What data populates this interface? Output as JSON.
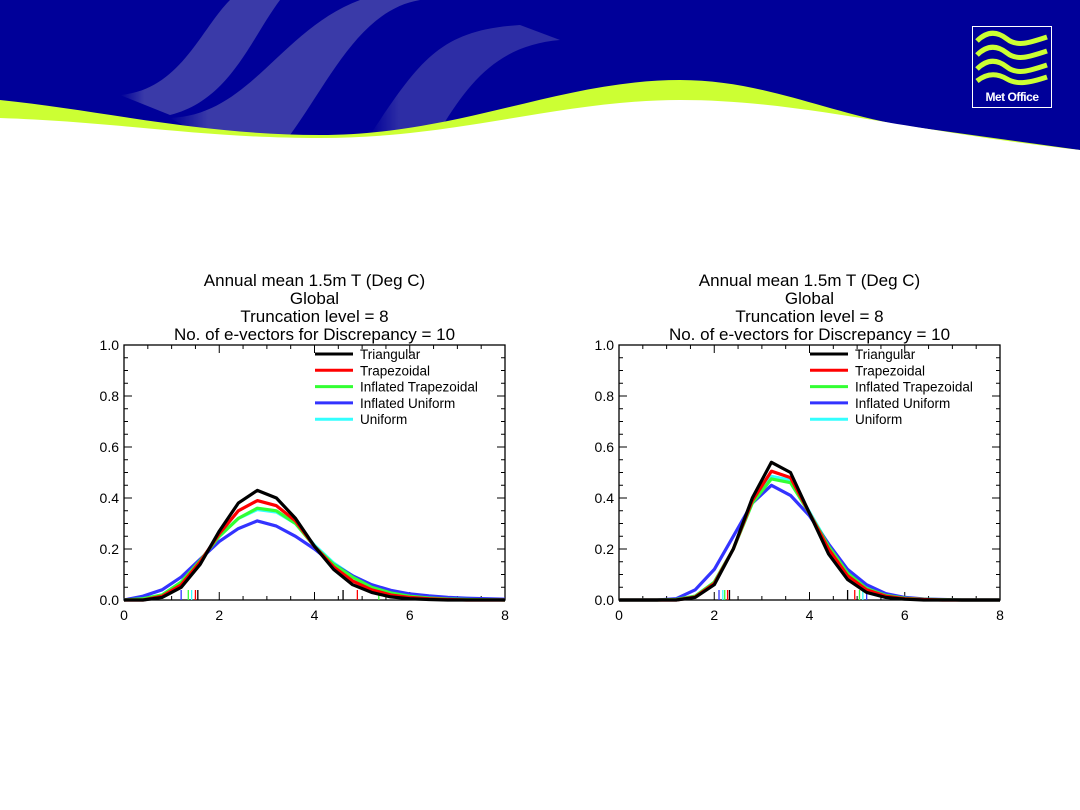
{
  "logo": {
    "text": "Met Office"
  },
  "colors": {
    "navy": "#000099",
    "lime": "#ccff33"
  },
  "chart_data": [
    {
      "type": "line",
      "title": [
        "Annual mean 1.5m T (Deg C)",
        "Global",
        "Truncation level = 8",
        "No. of e-vectors for Discrepancy = 10"
      ],
      "xlabel": "",
      "ylabel": "",
      "xlim": [
        0,
        8
      ],
      "ylim": [
        0,
        1.0
      ],
      "xticks": [
        "0",
        "2",
        "4",
        "6",
        "8"
      ],
      "yticks": [
        "0.0",
        "0.2",
        "0.4",
        "0.6",
        "0.8",
        "1.0"
      ],
      "legend_position": "top-right",
      "x": [
        0,
        0.4,
        0.8,
        1.2,
        1.6,
        2.0,
        2.4,
        2.8,
        3.2,
        3.6,
        4.0,
        4.4,
        4.8,
        5.2,
        5.6,
        6.0,
        6.4,
        6.8,
        7.2,
        7.6,
        8.0
      ],
      "series": [
        {
          "name": "Triangular",
          "color": "#000000",
          "values": [
            0,
            0,
            0.01,
            0.05,
            0.14,
            0.27,
            0.38,
            0.43,
            0.4,
            0.32,
            0.21,
            0.12,
            0.06,
            0.03,
            0.012,
            0.005,
            0.002,
            0,
            0,
            0,
            0
          ],
          "rug": [
            1.55,
            4.6
          ]
        },
        {
          "name": "Trapezoidal",
          "color": "#ff0000",
          "values": [
            0,
            0,
            0.015,
            0.06,
            0.15,
            0.26,
            0.35,
            0.39,
            0.37,
            0.31,
            0.21,
            0.13,
            0.075,
            0.04,
            0.02,
            0.01,
            0.005,
            0.002,
            0,
            0,
            0
          ],
          "rug": [
            1.5,
            4.9
          ]
        },
        {
          "name": "Inflated Trapezoidal",
          "color": "#33ff33",
          "values": [
            0,
            0.005,
            0.02,
            0.07,
            0.155,
            0.25,
            0.32,
            0.36,
            0.35,
            0.3,
            0.21,
            0.14,
            0.09,
            0.05,
            0.028,
            0.015,
            0.008,
            0.004,
            0.002,
            0.001,
            0
          ],
          "rug": [
            1.35,
            5.35
          ]
        },
        {
          "name": "Inflated Uniform",
          "color": "#3333ff",
          "values": [
            0,
            0.015,
            0.04,
            0.09,
            0.16,
            0.23,
            0.28,
            0.31,
            0.29,
            0.25,
            0.2,
            0.14,
            0.095,
            0.06,
            0.038,
            0.024,
            0.016,
            0.01,
            0.007,
            0.005,
            0.003
          ],
          "rug": [
            1.2
          ]
        },
        {
          "name": "Uniform",
          "color": "#33ffff",
          "values": [
            0,
            0.005,
            0.02,
            0.07,
            0.155,
            0.25,
            0.32,
            0.355,
            0.345,
            0.3,
            0.215,
            0.145,
            0.095,
            0.055,
            0.03,
            0.017,
            0.009,
            0.005,
            0.003,
            0.002,
            0.001
          ],
          "rug": [
            1.42
          ]
        }
      ]
    },
    {
      "type": "line",
      "title": [
        "Annual mean 1.5m T (Deg C)",
        "Global",
        "Truncation level = 8",
        "No. of e-vectors for Discrepancy = 10"
      ],
      "xlabel": "",
      "ylabel": "",
      "xlim": [
        0,
        8
      ],
      "ylim": [
        0,
        1.0
      ],
      "xticks": [
        "0",
        "2",
        "4",
        "6",
        "8"
      ],
      "yticks": [
        "0.0",
        "0.2",
        "0.4",
        "0.6",
        "0.8",
        "1.0"
      ],
      "legend_position": "top-right",
      "x": [
        0,
        0.4,
        0.8,
        1.2,
        1.6,
        2.0,
        2.4,
        2.8,
        3.2,
        3.6,
        4.0,
        4.4,
        4.8,
        5.2,
        5.6,
        6.0,
        6.4,
        6.8,
        7.2,
        7.6,
        8.0
      ],
      "series": [
        {
          "name": "Triangular",
          "color": "#000000",
          "values": [
            0,
            0,
            0,
            0,
            0.01,
            0.06,
            0.2,
            0.4,
            0.54,
            0.5,
            0.34,
            0.18,
            0.08,
            0.03,
            0.01,
            0.003,
            0,
            0,
            0,
            0,
            0
          ],
          "rug": [
            2.32,
            4.8
          ]
        },
        {
          "name": "Trapezoidal",
          "color": "#ff0000",
          "values": [
            0,
            0,
            0,
            0,
            0.012,
            0.065,
            0.2,
            0.39,
            0.505,
            0.48,
            0.34,
            0.2,
            0.095,
            0.04,
            0.015,
            0.005,
            0.002,
            0,
            0,
            0,
            0
          ],
          "rug": [
            2.28,
            4.95
          ]
        },
        {
          "name": "Inflated Trapezoidal",
          "color": "#33ff33",
          "values": [
            0,
            0,
            0,
            0.002,
            0.015,
            0.07,
            0.2,
            0.38,
            0.475,
            0.46,
            0.34,
            0.21,
            0.105,
            0.045,
            0.018,
            0.007,
            0.003,
            0.001,
            0,
            0,
            0
          ],
          "rug": [
            2.22,
            5.05
          ]
        },
        {
          "name": "Inflated Uniform",
          "color": "#3333ff",
          "values": [
            0,
            0,
            0,
            0.005,
            0.04,
            0.12,
            0.25,
            0.38,
            0.45,
            0.41,
            0.33,
            0.22,
            0.12,
            0.06,
            0.025,
            0.01,
            0.004,
            0.002,
            0,
            0,
            0
          ],
          "rug": [
            2.1,
            5.2
          ]
        },
        {
          "name": "Uniform",
          "color": "#33ffff",
          "values": [
            0,
            0,
            0,
            0.002,
            0.015,
            0.07,
            0.2,
            0.38,
            0.485,
            0.47,
            0.345,
            0.215,
            0.11,
            0.05,
            0.02,
            0.008,
            0.003,
            0.001,
            0,
            0,
            0
          ],
          "rug": [
            2.18,
            5.12
          ]
        }
      ]
    }
  ]
}
